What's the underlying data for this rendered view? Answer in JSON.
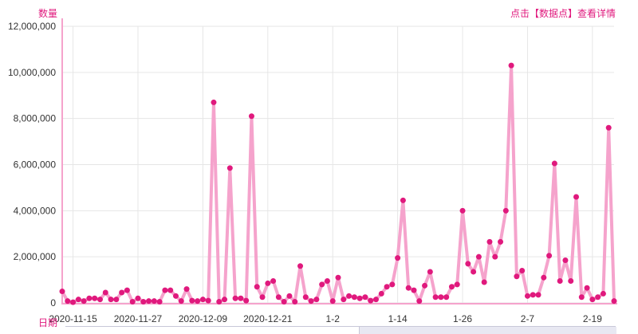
{
  "header": {
    "y_axis_title": "数量",
    "hint": "点击【数据点】查看详情"
  },
  "footer": {
    "x_axis_title": "日期"
  },
  "colors": {
    "accent": "#e0197d",
    "line": "#f5a3cc",
    "point": "#e0197d",
    "grid": "#e6e6e6"
  },
  "chart_data": {
    "type": "line",
    "title": "",
    "xlabel": "日期",
    "ylabel": "数量",
    "ylim": [
      0,
      12000000
    ],
    "y_ticks": [
      "12,000,000",
      "10,000,000",
      "8,000,000",
      "6,000,000",
      "4,000,000",
      "2,000,000",
      "0"
    ],
    "x_ticks": [
      "2020-11-15",
      "2020-11-27",
      "2020-12-09",
      "2020-12-21",
      "1-2",
      "1-14",
      "1-26",
      "2-7",
      "2-19"
    ],
    "grid": true,
    "x_start": "2020-11-13",
    "x_end": "2021-02-24",
    "series": [
      {
        "name": "",
        "values": [
          500000,
          80000,
          30000,
          150000,
          80000,
          200000,
          200000,
          150000,
          450000,
          150000,
          150000,
          450000,
          550000,
          50000,
          200000,
          50000,
          80000,
          80000,
          50000,
          550000,
          550000,
          300000,
          80000,
          600000,
          100000,
          80000,
          150000,
          100000,
          8700000,
          50000,
          150000,
          5850000,
          200000,
          200000,
          100000,
          8100000,
          700000,
          250000,
          850000,
          950000,
          250000,
          50000,
          300000,
          50000,
          1600000,
          250000,
          80000,
          150000,
          800000,
          950000,
          80000,
          1100000,
          150000,
          300000,
          250000,
          200000,
          250000,
          100000,
          150000,
          400000,
          700000,
          800000,
          1950000,
          4450000,
          650000,
          550000,
          80000,
          750000,
          1350000,
          250000,
          250000,
          250000,
          700000,
          800000,
          4000000,
          1700000,
          1350000,
          2000000,
          900000,
          2650000,
          2000000,
          2650000,
          4000000,
          10300000,
          1150000,
          1400000,
          300000,
          350000,
          350000,
          1100000,
          2050000,
          6050000,
          950000,
          1850000,
          950000,
          4600000,
          250000,
          650000,
          150000,
          250000,
          400000,
          7600000,
          80000
        ]
      }
    ]
  }
}
